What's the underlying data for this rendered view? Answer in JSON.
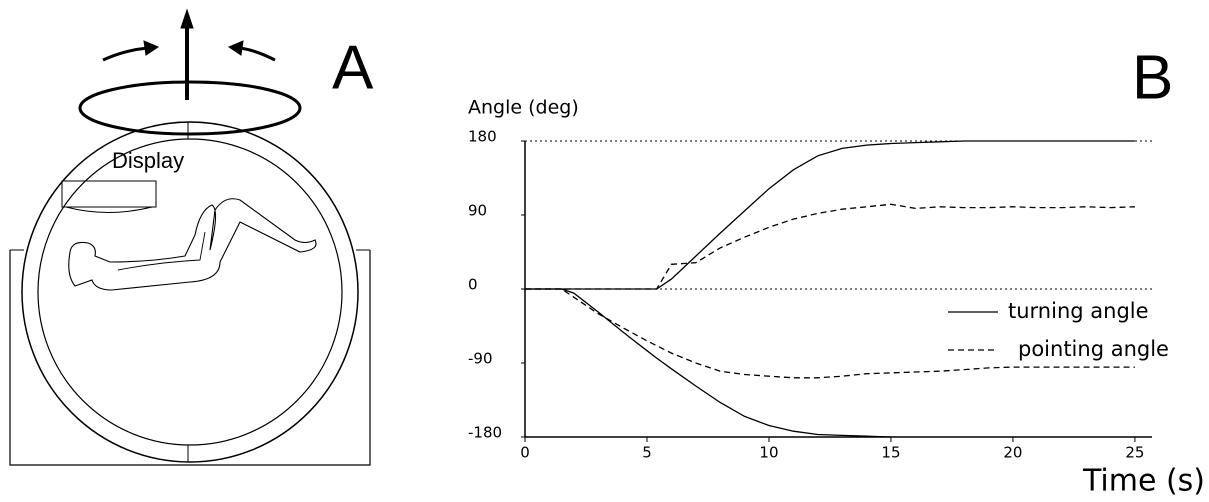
{
  "panel_a": {
    "label": "A",
    "display_label": "Display"
  },
  "chart_data": {
    "type": "line",
    "panel_label": "B",
    "y_label": "Angle (deg)",
    "x_label": "Time (s)",
    "xlim": [
      0,
      25.7
    ],
    "xticks": [
      0,
      5,
      10,
      15,
      20,
      25
    ],
    "ylim": [
      -180,
      180
    ],
    "yticks": [
      -180,
      -90,
      0,
      90,
      180
    ],
    "hlines": [
      180,
      0
    ],
    "legend": "right",
    "color": "#000",
    "x": [
      0,
      1,
      1.5,
      2,
      3,
      4,
      5,
      5.4,
      6,
      7,
      8,
      9,
      10,
      11,
      12,
      13,
      14,
      15,
      16,
      17,
      18,
      19,
      20,
      21,
      22,
      23,
      24,
      25
    ],
    "series": [
      {
        "name": "turning angle",
        "style": "solid",
        "values": [
          0,
          0,
          0,
          0,
          0,
          0,
          0,
          0,
          12,
          40,
          68,
          95,
          122,
          145,
          162,
          171,
          175,
          177,
          178,
          179,
          180,
          180,
          180,
          180,
          180,
          180,
          180,
          180
        ]
      },
      {
        "name": "pointing angle",
        "style": "dashed",
        "values": [
          0,
          0,
          0,
          0,
          0,
          0,
          0,
          0,
          30,
          32,
          50,
          63,
          75,
          85,
          92,
          97,
          100,
          103,
          98,
          100,
          99,
          99,
          100,
          99,
          99,
          100,
          99,
          100
        ]
      },
      {
        "style": "solid",
        "values": [
          0,
          0,
          0,
          -5,
          -28,
          -52,
          -75,
          -84,
          -97,
          -118,
          -138,
          -155,
          -166,
          -173,
          -177,
          -178,
          -179,
          -180,
          null,
          null,
          null,
          null,
          null,
          null,
          null,
          null,
          null,
          null
        ]
      },
      {
        "style": "dashed",
        "values": [
          0,
          0,
          0,
          -10,
          -30,
          -47,
          -63,
          -69,
          -78,
          -90,
          -100,
          -104,
          -106,
          -108,
          -108,
          -106,
          -103,
          -102,
          -101,
          -100,
          -98,
          -96,
          -95,
          -95,
          -95,
          -95,
          -95,
          -95
        ]
      }
    ]
  }
}
